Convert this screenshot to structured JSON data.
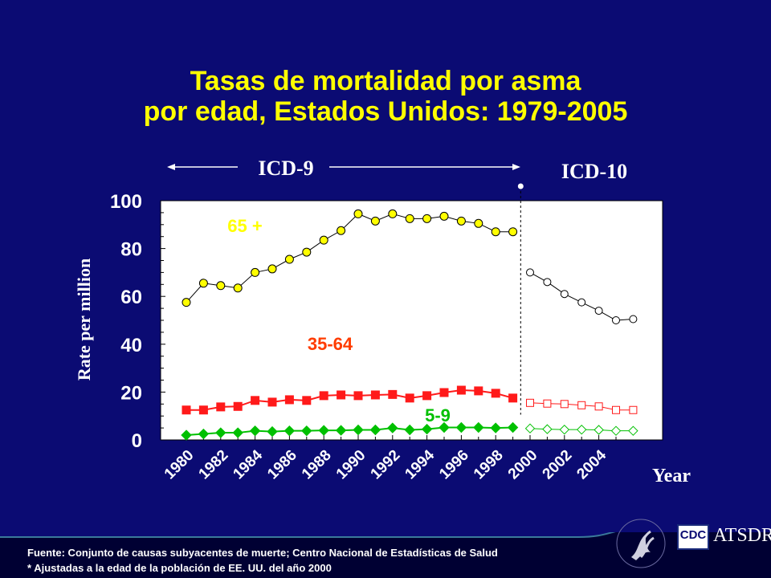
{
  "title": {
    "line1": "Tasas de mortalidad por asma",
    "line2": "por edad, Estados Unidos: 1979-2005"
  },
  "footer": {
    "source1": "Fuente: Conjunto de causas subyacentes de muerte; Centro Nacional de Estadísticas de Salud",
    "source2": "* Ajustadas a la edad de la población de EE. UU. del año 2000",
    "cdc_logo": "CDC",
    "atsdr_logo": "ATSDR"
  },
  "colors": {
    "background": "#0b0b73",
    "title": "#ffff00",
    "series_65": "#ffff00",
    "series_35_64": "#ff1a1a",
    "series_5_9": "#00c000",
    "label_35_64": "#ff3c00",
    "axis": "#000000",
    "plot_bg": "#ffffff"
  },
  "chart_data": {
    "type": "line",
    "xlabel": "Year",
    "ylabel": "Rate per million",
    "ylim": [
      0,
      100
    ],
    "yticks": [
      "0",
      "20",
      "40",
      "60",
      "80",
      "100"
    ],
    "xlim": [
      1980,
      2006
    ],
    "xticks": [
      "1980",
      "1982",
      "1984",
      "1986",
      "1988",
      "1990",
      "1992",
      "1994",
      "1996",
      "1998",
      "2000",
      "2002",
      "2004"
    ],
    "grid": false,
    "era_labels": [
      {
        "text": "ICD-9",
        "years": [
          1979,
          1998
        ]
      },
      {
        "text": "ICD-10",
        "years": [
          1999,
          2005
        ]
      }
    ],
    "divider_year": 1999,
    "series": [
      {
        "name": "65 +",
        "marker": "circle",
        "icd9_years": [
          1980,
          1981,
          1982,
          1983,
          1984,
          1985,
          1986,
          1987,
          1988,
          1989,
          1990,
          1991,
          1992,
          1993,
          1994,
          1995,
          1996,
          1997,
          1998,
          1999
        ],
        "icd9_values": [
          57.5,
          65.5,
          64.5,
          63.5,
          70,
          71.5,
          75.5,
          78.5,
          83.5,
          87.5,
          94.5,
          91.5,
          94.5,
          92.5,
          92.5,
          93.5,
          91.5,
          90.5,
          87,
          87
        ],
        "icd10_years": [
          2000,
          2001,
          2002,
          2003,
          2004,
          2005,
          2006
        ],
        "icd10_values": [
          70,
          66,
          61,
          57.5,
          54,
          50,
          50.5
        ]
      },
      {
        "name": "35-64",
        "marker": "square",
        "icd9_years": [
          1980,
          1981,
          1982,
          1983,
          1984,
          1985,
          1986,
          1987,
          1988,
          1989,
          1990,
          1991,
          1992,
          1993,
          1994,
          1995,
          1996,
          1997,
          1998,
          1999
        ],
        "icd9_values": [
          12.5,
          12.5,
          13.8,
          14,
          16.5,
          15.8,
          16.8,
          16.5,
          18.5,
          18.8,
          18.5,
          18.8,
          19,
          17.5,
          18.5,
          19.8,
          20.8,
          20.5,
          19.5,
          17.5
        ],
        "icd10_years": [
          2000,
          2001,
          2002,
          2003,
          2004,
          2005,
          2006
        ],
        "icd10_values": [
          15.5,
          15.2,
          15,
          14.5,
          14,
          12.5,
          12.5
        ]
      },
      {
        "name": "5-9",
        "marker": "diamond",
        "icd9_years": [
          1980,
          1981,
          1982,
          1983,
          1984,
          1985,
          1986,
          1987,
          1988,
          1989,
          1990,
          1991,
          1992,
          1993,
          1994,
          1995,
          1996,
          1997,
          1998,
          1999
        ],
        "icd9_values": [
          2,
          2.5,
          3,
          3,
          3.8,
          3.5,
          3.8,
          3.8,
          4,
          4,
          4.2,
          4.2,
          5,
          4.2,
          4.5,
          5.2,
          5.2,
          5.2,
          5,
          5.2
        ],
        "icd10_years": [
          2000,
          2001,
          2002,
          2003,
          2004,
          2005,
          2006
        ],
        "icd10_values": [
          4.8,
          4.5,
          4.3,
          4.3,
          4.2,
          3.8,
          3.8
        ]
      }
    ]
  }
}
